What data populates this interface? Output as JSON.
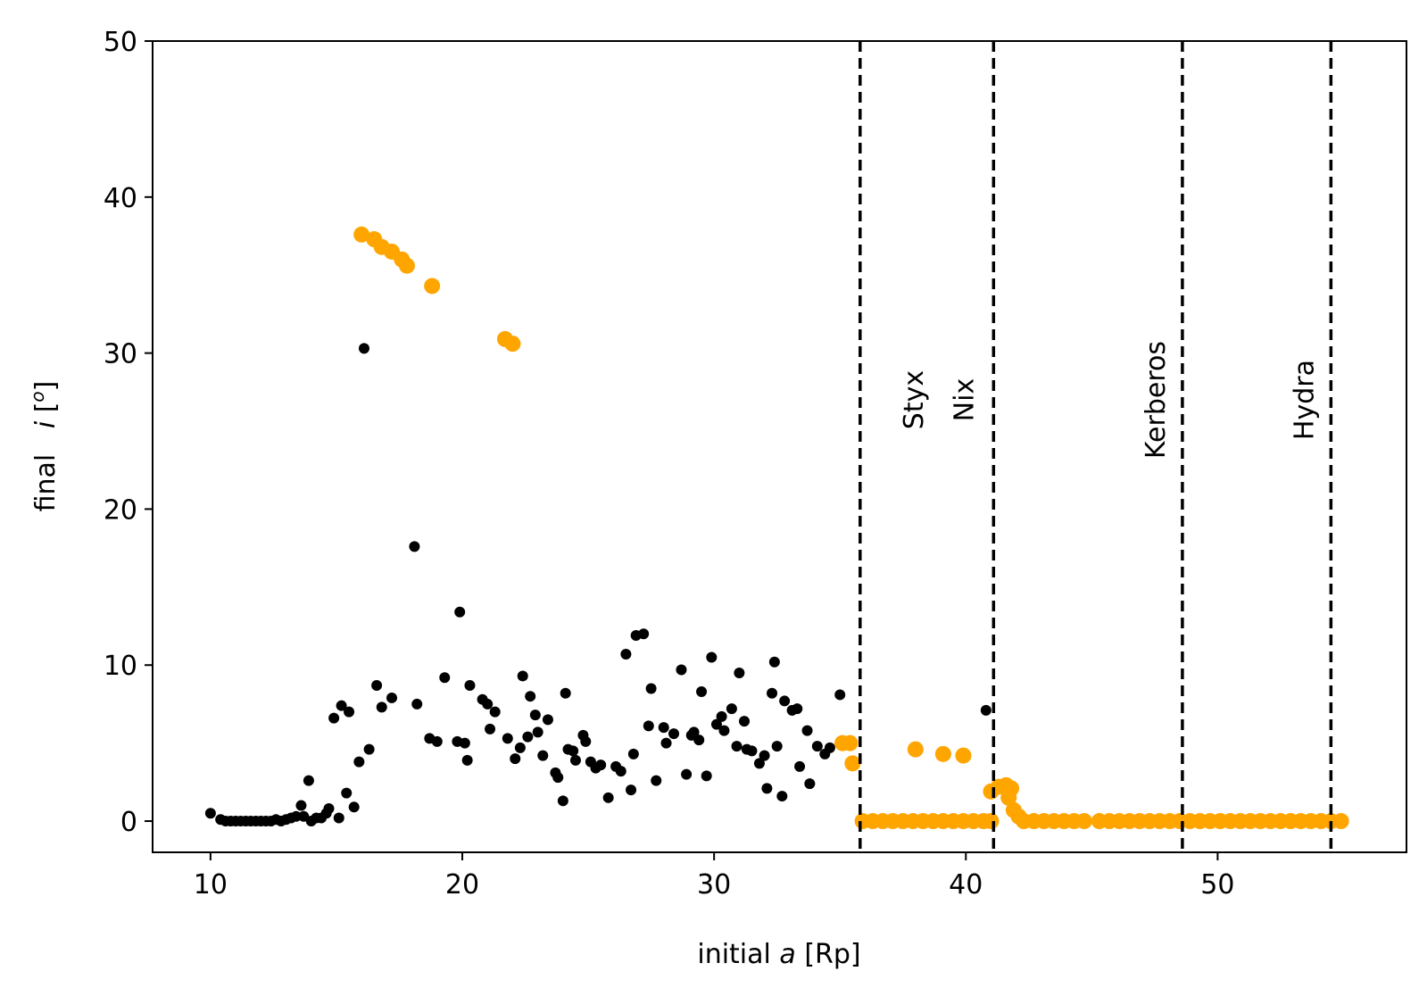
{
  "chart_data": {
    "type": "scatter",
    "xlabel_prefix": "initial ",
    "xlabel_var": "a",
    "xlabel_suffix": " [Rp]",
    "ylabel_prefix": "final   ",
    "ylabel_var": "i",
    "ylabel_suffix": " [",
    "ylabel_sup": "o",
    "ylabel_end": "]",
    "xlim": [
      7.7,
      57.5
    ],
    "ylim": [
      -2,
      50
    ],
    "xticks": [
      10,
      20,
      30,
      40,
      50
    ],
    "yticks": [
      0,
      10,
      20,
      30,
      40,
      50
    ],
    "grid": false,
    "vlines": [
      {
        "x": 35.8,
        "label": "Styx",
        "label_x": 37.9,
        "label_y": 27
      },
      {
        "x": 41.1,
        "label": "Nix",
        "label_x": 39.9,
        "label_y": 27
      },
      {
        "x": 48.6,
        "label": "Kerberos",
        "label_x": 47.5,
        "label_y": 27
      },
      {
        "x": 54.5,
        "label": "Hydra",
        "label_x": 53.4,
        "label_y": 27
      }
    ],
    "series": [
      {
        "color": "#000000",
        "marker_size": "small",
        "points": [
          [
            10.0,
            0.5
          ],
          [
            10.4,
            0.1
          ],
          [
            10.6,
            0.0
          ],
          [
            10.8,
            0.0
          ],
          [
            11.0,
            0.0
          ],
          [
            11.2,
            0.0
          ],
          [
            11.4,
            0.0
          ],
          [
            11.6,
            0.0
          ],
          [
            11.8,
            0.0
          ],
          [
            12.0,
            0.0
          ],
          [
            12.2,
            0.0
          ],
          [
            12.4,
            0.0
          ],
          [
            12.6,
            0.1
          ],
          [
            12.8,
            0.0
          ],
          [
            13.0,
            0.1
          ],
          [
            13.2,
            0.2
          ],
          [
            13.4,
            0.3
          ],
          [
            13.6,
            1.0
          ],
          [
            13.7,
            0.3
          ],
          [
            13.9,
            2.6
          ],
          [
            14.0,
            0.0
          ],
          [
            14.2,
            0.2
          ],
          [
            14.4,
            0.2
          ],
          [
            14.6,
            0.5
          ],
          [
            14.7,
            0.8
          ],
          [
            14.9,
            6.6
          ],
          [
            15.1,
            0.2
          ],
          [
            15.2,
            7.4
          ],
          [
            15.4,
            1.8
          ],
          [
            15.5,
            7.0
          ],
          [
            15.7,
            0.9
          ],
          [
            15.9,
            3.8
          ],
          [
            16.1,
            30.3
          ],
          [
            16.3,
            4.6
          ],
          [
            16.6,
            8.7
          ],
          [
            16.8,
            7.3
          ],
          [
            17.2,
            7.9
          ],
          [
            18.1,
            17.6
          ],
          [
            18.2,
            7.5
          ],
          [
            18.7,
            5.3
          ],
          [
            19.0,
            5.1
          ],
          [
            19.3,
            9.2
          ],
          [
            19.8,
            5.1
          ],
          [
            19.9,
            13.4
          ],
          [
            20.1,
            5.0
          ],
          [
            20.2,
            3.9
          ],
          [
            20.3,
            8.7
          ],
          [
            20.8,
            7.8
          ],
          [
            21.0,
            7.5
          ],
          [
            21.1,
            5.9
          ],
          [
            21.3,
            7.0
          ],
          [
            21.8,
            5.3
          ],
          [
            22.1,
            4.0
          ],
          [
            22.3,
            4.7
          ],
          [
            22.4,
            9.3
          ],
          [
            22.6,
            5.4
          ],
          [
            22.7,
            8.0
          ],
          [
            22.9,
            6.8
          ],
          [
            23.0,
            5.7
          ],
          [
            23.2,
            4.2
          ],
          [
            23.4,
            6.5
          ],
          [
            23.7,
            3.1
          ],
          [
            23.8,
            2.8
          ],
          [
            24.0,
            1.3
          ],
          [
            24.1,
            8.2
          ],
          [
            24.2,
            4.6
          ],
          [
            24.4,
            4.5
          ],
          [
            24.5,
            3.9
          ],
          [
            24.8,
            5.5
          ],
          [
            24.9,
            5.1
          ],
          [
            25.1,
            3.8
          ],
          [
            25.3,
            3.4
          ],
          [
            25.5,
            3.6
          ],
          [
            25.8,
            1.5
          ],
          [
            26.1,
            3.5
          ],
          [
            26.3,
            3.2
          ],
          [
            26.5,
            10.7
          ],
          [
            26.7,
            2.0
          ],
          [
            26.8,
            4.3
          ],
          [
            26.9,
            11.9
          ],
          [
            27.2,
            12.0
          ],
          [
            27.4,
            6.1
          ],
          [
            27.5,
            8.5
          ],
          [
            27.7,
            2.6
          ],
          [
            28.0,
            6.0
          ],
          [
            28.1,
            5.0
          ],
          [
            28.4,
            5.6
          ],
          [
            28.7,
            9.7
          ],
          [
            28.9,
            3.0
          ],
          [
            29.1,
            5.5
          ],
          [
            29.2,
            5.7
          ],
          [
            29.4,
            5.2
          ],
          [
            29.5,
            8.3
          ],
          [
            29.7,
            2.9
          ],
          [
            29.9,
            10.5
          ],
          [
            30.1,
            6.2
          ],
          [
            30.3,
            6.7
          ],
          [
            30.4,
            5.8
          ],
          [
            30.7,
            7.2
          ],
          [
            30.9,
            4.8
          ],
          [
            31.0,
            9.5
          ],
          [
            31.2,
            6.4
          ],
          [
            31.3,
            4.6
          ],
          [
            31.5,
            4.5
          ],
          [
            31.8,
            3.7
          ],
          [
            32.0,
            4.2
          ],
          [
            32.1,
            2.1
          ],
          [
            32.3,
            8.2
          ],
          [
            32.4,
            10.2
          ],
          [
            32.5,
            4.8
          ],
          [
            32.7,
            1.6
          ],
          [
            32.8,
            7.7
          ],
          [
            33.1,
            7.1
          ],
          [
            33.3,
            7.2
          ],
          [
            33.4,
            3.5
          ],
          [
            33.7,
            5.8
          ],
          [
            33.8,
            2.4
          ],
          [
            34.1,
            4.8
          ],
          [
            34.4,
            4.3
          ],
          [
            34.6,
            4.7
          ],
          [
            35.0,
            8.1
          ],
          [
            40.8,
            7.1
          ]
        ]
      },
      {
        "color": "#ffa500",
        "marker_size": "large",
        "points": [
          [
            16.0,
            37.6
          ],
          [
            16.5,
            37.3
          ],
          [
            16.8,
            36.8
          ],
          [
            17.2,
            36.5
          ],
          [
            17.6,
            36.0
          ],
          [
            17.8,
            35.6
          ],
          [
            18.8,
            34.3
          ],
          [
            21.7,
            30.9
          ],
          [
            22.0,
            30.6
          ],
          [
            35.1,
            5.0
          ],
          [
            35.4,
            5.0
          ],
          [
            35.5,
            3.7
          ],
          [
            38.0,
            4.6
          ],
          [
            39.1,
            4.3
          ],
          [
            39.9,
            4.2
          ],
          [
            41.0,
            1.9
          ],
          [
            41.3,
            2.2
          ],
          [
            41.6,
            2.3
          ],
          [
            41.7,
            1.5
          ],
          [
            41.8,
            2.1
          ],
          [
            41.9,
            0.7
          ],
          [
            42.1,
            0.3
          ],
          [
            35.9,
            0
          ],
          [
            36.3,
            0
          ],
          [
            36.7,
            0
          ],
          [
            37.1,
            0
          ],
          [
            37.5,
            0
          ],
          [
            37.9,
            0
          ],
          [
            38.3,
            0
          ],
          [
            38.7,
            0
          ],
          [
            39.1,
            0
          ],
          [
            39.5,
            0
          ],
          [
            39.9,
            0
          ],
          [
            40.3,
            0
          ],
          [
            40.7,
            0
          ],
          [
            41.0,
            0
          ],
          [
            42.3,
            0
          ],
          [
            42.7,
            0
          ],
          [
            43.1,
            0
          ],
          [
            43.5,
            0
          ],
          [
            43.9,
            0
          ],
          [
            44.3,
            0
          ],
          [
            44.7,
            0
          ],
          [
            45.3,
            0
          ],
          [
            45.7,
            0
          ],
          [
            46.1,
            0
          ],
          [
            46.5,
            0
          ],
          [
            46.9,
            0
          ],
          [
            47.3,
            0
          ],
          [
            47.7,
            0
          ],
          [
            48.1,
            0
          ],
          [
            48.5,
            0
          ],
          [
            48.9,
            0
          ],
          [
            49.3,
            0
          ],
          [
            49.7,
            0
          ],
          [
            50.1,
            0
          ],
          [
            50.5,
            0
          ],
          [
            50.9,
            0
          ],
          [
            51.3,
            0
          ],
          [
            51.7,
            0
          ],
          [
            52.1,
            0
          ],
          [
            52.5,
            0
          ],
          [
            52.9,
            0
          ],
          [
            53.3,
            0
          ],
          [
            53.7,
            0
          ],
          [
            54.1,
            0
          ],
          [
            54.5,
            0
          ],
          [
            54.9,
            0
          ]
        ]
      }
    ]
  }
}
